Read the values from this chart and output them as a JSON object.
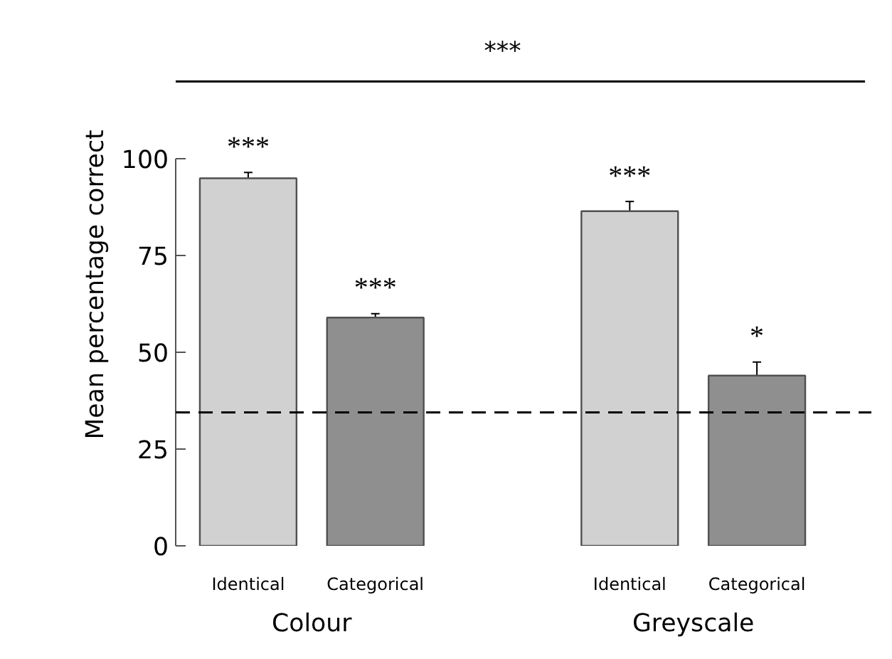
{
  "chart_data": {
    "type": "bar",
    "ylabel": "Mean percentage correct",
    "categories": [
      "Identical",
      "Categorical",
      null,
      "Identical",
      "Categorical"
    ],
    "values": [
      95,
      59,
      null,
      86.5,
      44
    ],
    "errors": [
      1.5,
      1,
      null,
      2.5,
      3.5
    ],
    "colors": [
      "#d0d1d0",
      "#8f8f8f",
      null,
      "#d0d1d0",
      "#8f8f8f"
    ],
    "value_labels": [
      "***",
      "***",
      null,
      "***",
      "*"
    ],
    "ylim": [
      0,
      100
    ],
    "yticks": [
      0,
      25,
      50,
      75,
      100
    ],
    "ref_lines": [
      {
        "axis": "y",
        "value": 34.5,
        "color": "#000000",
        "line_style": "dashed"
      }
    ],
    "annotations": [
      "***",
      "Colour",
      "Greyscale"
    ],
    "grid": false
  }
}
